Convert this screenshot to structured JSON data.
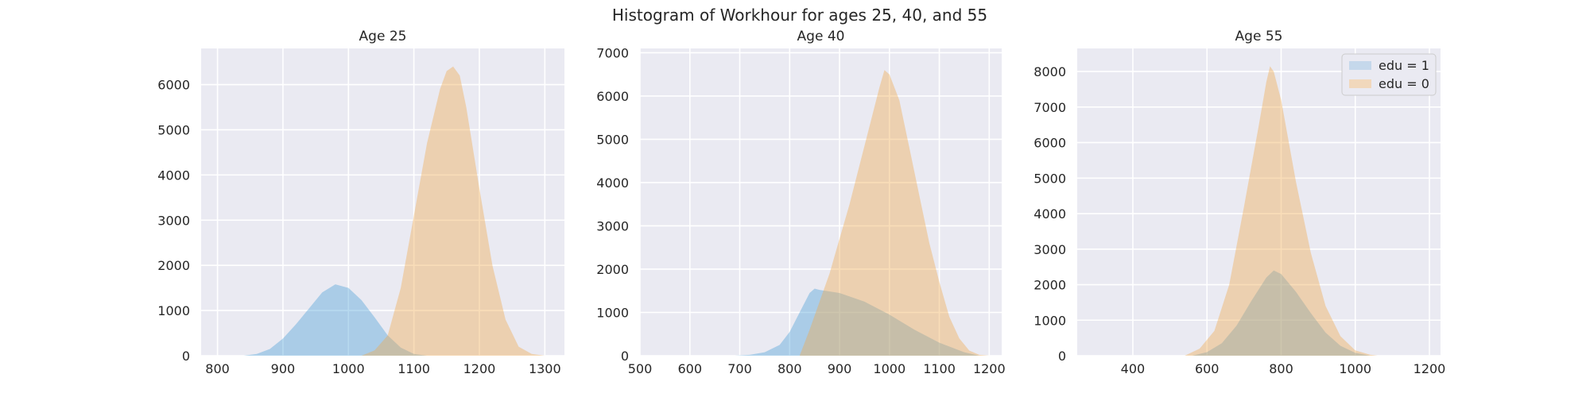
{
  "chart_data": {
    "type": "histogram",
    "suptitle": "Histogram of Workhour for ages 25, 40, and 55",
    "background_color": "#eaeaf2",
    "grid": true,
    "legend": {
      "placement": "top-right",
      "panel": 2,
      "entries": [
        {
          "label": "edu = 1",
          "color": "#a6c8e6"
        },
        {
          "label": "edu = 0",
          "color": "#f5c98f"
        }
      ]
    },
    "series_colors": {
      "edu_1": "#4a9fd6",
      "edu_0": "#f0a94d"
    },
    "panels": [
      {
        "title": "Age 25",
        "xlim": [
          775,
          1330
        ],
        "ylim": [
          0,
          6800
        ],
        "xticks": [
          800,
          900,
          1000,
          1100,
          1200,
          1300
        ],
        "yticks": [
          0,
          1000,
          2000,
          3000,
          4000,
          5000,
          6000
        ],
        "series": [
          {
            "key": "edu_1",
            "label": "edu = 1",
            "x": [
              840,
              860,
              880,
              900,
              920,
              940,
              960,
              980,
              1000,
              1020,
              1040,
              1060,
              1080,
              1100,
              1120
            ],
            "y": [
              0,
              40,
              150,
              380,
              700,
              1050,
              1400,
              1580,
              1500,
              1230,
              850,
              450,
              180,
              40,
              0
            ]
          },
          {
            "key": "edu_0",
            "label": "edu = 0",
            "x": [
              1020,
              1040,
              1060,
              1080,
              1100,
              1120,
              1140,
              1150,
              1160,
              1170,
              1180,
              1200,
              1220,
              1240,
              1260,
              1280,
              1300
            ],
            "y": [
              0,
              120,
              450,
              1500,
              3100,
              4700,
              5900,
              6300,
              6400,
              6200,
              5500,
              3700,
              2000,
              800,
              200,
              40,
              0
            ]
          }
        ]
      },
      {
        "title": "Age 40",
        "xlim": [
          500,
          1225
        ],
        "ylim": [
          0,
          7100
        ],
        "xticks": [
          500,
          600,
          700,
          800,
          900,
          1000,
          1100,
          1200
        ],
        "yticks": [
          0,
          1000,
          2000,
          3000,
          4000,
          5000,
          6000,
          7000
        ],
        "series": [
          {
            "key": "edu_1",
            "label": "edu = 1",
            "x": [
              690,
              720,
              750,
              780,
              800,
              820,
              840,
              850,
              860,
              900,
              950,
              1000,
              1050,
              1100,
              1150,
              1180
            ],
            "y": [
              0,
              20,
              80,
              250,
              550,
              1000,
              1450,
              1550,
              1520,
              1450,
              1250,
              950,
              600,
              300,
              80,
              0
            ]
          },
          {
            "key": "edu_0",
            "label": "edu = 0",
            "x": [
              820,
              840,
              860,
              880,
              900,
              920,
              940,
              960,
              980,
              990,
              1000,
              1020,
              1040,
              1060,
              1080,
              1100,
              1120,
              1140,
              1160,
              1180,
              1200
            ],
            "y": [
              0,
              600,
              1250,
              1900,
              2700,
              3500,
              4400,
              5300,
              6200,
              6600,
              6500,
              5900,
              4800,
              3700,
              2600,
              1700,
              900,
              400,
              120,
              20,
              0
            ]
          }
        ]
      },
      {
        "title": "Age 55",
        "xlim": [
          250,
          1230
        ],
        "ylim": [
          0,
          8650
        ],
        "xticks": [
          400,
          600,
          800,
          1000,
          1200
        ],
        "yticks": [
          0,
          1000,
          2000,
          3000,
          4000,
          5000,
          6000,
          7000,
          8000
        ],
        "series": [
          {
            "key": "edu_1",
            "label": "edu = 1",
            "x": [
              560,
              600,
              640,
              680,
              720,
              760,
              780,
              800,
              840,
              880,
              920,
              960,
              1000,
              1040
            ],
            "y": [
              0,
              100,
              350,
              850,
              1550,
              2200,
              2400,
              2300,
              1800,
              1200,
              650,
              280,
              80,
              0
            ]
          },
          {
            "key": "edu_0",
            "label": "edu = 0",
            "x": [
              540,
              580,
              620,
              660,
              700,
              740,
              760,
              770,
              780,
              800,
              840,
              880,
              920,
              960,
              1000,
              1040,
              1060
            ],
            "y": [
              0,
              200,
              700,
              2000,
              4200,
              6500,
              7700,
              8150,
              8000,
              7200,
              4900,
              2900,
              1400,
              550,
              150,
              30,
              0
            ]
          }
        ]
      }
    ]
  }
}
